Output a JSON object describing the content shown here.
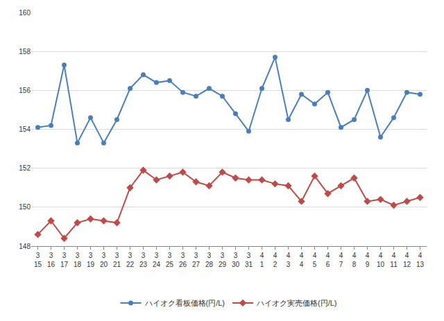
{
  "chart_data": {
    "type": "line",
    "categories": [
      "3\n15",
      "3\n16",
      "3\n17",
      "3\n18",
      "3\n19",
      "3\n20",
      "3\n21",
      "3\n22",
      "3\n23",
      "3\n24",
      "3\n25",
      "3\n26",
      "3\n27",
      "3\n28",
      "3\n29",
      "3\n30",
      "3\n31",
      "4\n1",
      "4\n2",
      "4\n3",
      "4\n4",
      "4\n5",
      "4\n6",
      "4\n7",
      "4\n8",
      "4\n9",
      "4\n10",
      "4\n11",
      "4\n12",
      "4\n13"
    ],
    "series": [
      {
        "name": "ハイオク看板価格(円/L)",
        "color": "#4a7ebb",
        "marker": "circle",
        "values": [
          154.1,
          154.2,
          157.3,
          153.3,
          154.6,
          153.3,
          154.5,
          156.1,
          156.8,
          156.4,
          156.5,
          155.9,
          155.7,
          156.1,
          155.7,
          154.8,
          153.9,
          156.1,
          157.7,
          154.5,
          155.8,
          155.3,
          155.9,
          154.1,
          154.5,
          156.0,
          153.6,
          154.6,
          155.9,
          155.8
        ]
      },
      {
        "name": "ハイオク実売価格(円/L)",
        "color": "#be4b48",
        "marker": "diamond",
        "values": [
          148.6,
          149.3,
          148.4,
          149.2,
          149.4,
          149.3,
          149.2,
          151.0,
          151.9,
          151.4,
          151.6,
          151.8,
          151.3,
          151.1,
          151.8,
          151.5,
          151.4,
          151.4,
          151.2,
          151.1,
          150.3,
          151.6,
          150.7,
          151.1,
          151.5,
          150.3,
          150.4,
          150.1,
          150.3,
          150.5
        ]
      }
    ],
    "ylim": [
      148,
      160
    ],
    "yticks": [
      148,
      150,
      152,
      154,
      156,
      158,
      160
    ],
    "grid": true,
    "legend": "bottom"
  }
}
